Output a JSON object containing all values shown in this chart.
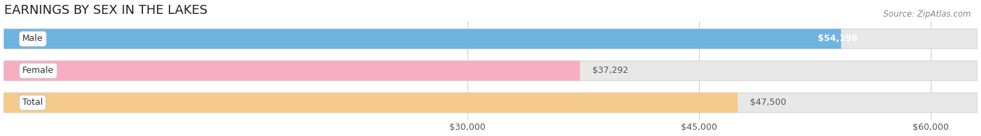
{
  "title": "EARNINGS BY SEX IN THE LAKES",
  "source": "Source: ZipAtlas.com",
  "categories": [
    "Male",
    "Female",
    "Total"
  ],
  "values": [
    54196,
    37292,
    47500
  ],
  "bar_colors": [
    "#6fb3e0",
    "#f7aec2",
    "#f5c98a"
  ],
  "value_label_colors": [
    "white",
    "#555555",
    "#555555"
  ],
  "xlim_min": 0,
  "xlim_max": 63000,
  "x_axis_min": 27500,
  "xticks": [
    30000,
    45000,
    60000
  ],
  "xtick_labels": [
    "$30,000",
    "$45,000",
    "$60,000"
  ],
  "title_fontsize": 13,
  "label_fontsize": 9,
  "tick_fontsize": 9,
  "source_fontsize": 8.5,
  "bar_height": 0.62,
  "background_color": "#ffffff",
  "bar_bg_color": "#e8e8e8",
  "bar_bg_edge_color": "#d8d8d8",
  "grid_color": "#d0d0d0"
}
